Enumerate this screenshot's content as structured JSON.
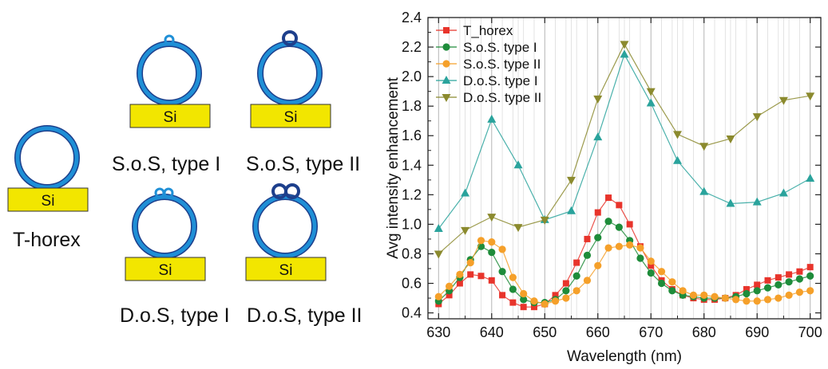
{
  "schematic": {
    "substrate_label": "Si",
    "captions": {
      "t_horex": "T-horex",
      "sos1": "S.o.S, type I",
      "sos2": "S.o.S, type II",
      "dos1": "D.o.S, type I",
      "dos2": "D.o.S, type II"
    },
    "colors": {
      "ring": "#1f8fd6",
      "ring_edge": "#1d3f8c",
      "substrate": "#f2e600"
    }
  },
  "chart_data": {
    "type": "line",
    "xlabel": "Wavelength (nm)",
    "ylabel": "Avg intensity enhancement",
    "xlim": [
      628,
      702
    ],
    "ylim": [
      0.36,
      2.4
    ],
    "xticks": [
      630,
      640,
      650,
      660,
      670,
      680,
      690,
      700
    ],
    "yticks": [
      0.4,
      0.6,
      0.8,
      1.0,
      1.2,
      1.4,
      1.6,
      1.8,
      2.0,
      2.2,
      2.4
    ],
    "grid": "vertical, at every data x",
    "legend": "top-left",
    "series": [
      {
        "name": "T_horex",
        "color": "#e8342b",
        "marker": "square",
        "x": [
          630,
          632,
          634,
          636,
          638,
          640,
          642,
          644,
          646,
          648,
          650,
          652,
          654,
          656,
          658,
          660,
          662,
          664,
          666,
          668,
          670,
          672,
          674,
          676,
          678,
          680,
          682,
          684,
          686,
          688,
          690,
          692,
          694,
          696,
          698,
          700
        ],
        "y": [
          0.46,
          0.52,
          0.6,
          0.66,
          0.65,
          0.62,
          0.52,
          0.47,
          0.44,
          0.44,
          0.46,
          0.52,
          0.6,
          0.74,
          0.9,
          1.08,
          1.18,
          1.13,
          1.0,
          0.85,
          0.72,
          0.62,
          0.56,
          0.52,
          0.5,
          0.49,
          0.49,
          0.5,
          0.52,
          0.56,
          0.59,
          0.62,
          0.64,
          0.66,
          0.68,
          0.71
        ]
      },
      {
        "name": "S.o.S. type I",
        "color": "#1e8c3a",
        "marker": "circle",
        "x": [
          630,
          632,
          634,
          636,
          638,
          640,
          642,
          644,
          646,
          648,
          650,
          652,
          654,
          656,
          658,
          660,
          662,
          664,
          666,
          668,
          670,
          672,
          674,
          676,
          678,
          680,
          682,
          684,
          686,
          688,
          690,
          692,
          694,
          696,
          698,
          700
        ],
        "y": [
          0.48,
          0.55,
          0.64,
          0.76,
          0.85,
          0.81,
          0.68,
          0.56,
          0.49,
          0.47,
          0.47,
          0.49,
          0.55,
          0.65,
          0.79,
          0.91,
          1.02,
          0.98,
          0.89,
          0.77,
          0.67,
          0.6,
          0.55,
          0.52,
          0.51,
          0.5,
          0.5,
          0.5,
          0.51,
          0.53,
          0.55,
          0.57,
          0.59,
          0.61,
          0.63,
          0.65
        ]
      },
      {
        "name": "S.o.S. type II",
        "color": "#f5a02a",
        "marker": "circle",
        "x": [
          630,
          632,
          634,
          636,
          638,
          640,
          642,
          644,
          646,
          648,
          650,
          652,
          654,
          656,
          658,
          660,
          662,
          664,
          666,
          668,
          670,
          672,
          674,
          676,
          678,
          680,
          682,
          684,
          686,
          688,
          690,
          692,
          694,
          696,
          698,
          700
        ],
        "y": [
          0.51,
          0.58,
          0.66,
          0.74,
          0.89,
          0.88,
          0.83,
          0.64,
          0.53,
          0.48,
          0.46,
          0.48,
          0.5,
          0.55,
          0.62,
          0.72,
          0.84,
          0.85,
          0.86,
          0.84,
          0.75,
          0.68,
          0.61,
          0.55,
          0.52,
          0.52,
          0.51,
          0.5,
          0.49,
          0.48,
          0.48,
          0.49,
          0.5,
          0.52,
          0.54,
          0.55
        ]
      },
      {
        "name": "D.o.S. type I",
        "color": "#2aa39c",
        "marker": "triangle-up",
        "x": [
          630,
          635,
          640,
          645,
          650,
          655,
          660,
          665,
          670,
          675,
          680,
          685,
          690,
          695,
          700
        ],
        "y": [
          0.97,
          1.21,
          1.71,
          1.4,
          1.03,
          1.09,
          1.59,
          2.15,
          1.82,
          1.43,
          1.22,
          1.14,
          1.15,
          1.21,
          1.31
        ]
      },
      {
        "name": "D.o.S. type II",
        "color": "#8b8a2e",
        "marker": "triangle-down",
        "x": [
          630,
          635,
          640,
          645,
          650,
          655,
          660,
          665,
          670,
          675,
          680,
          685,
          690,
          695,
          700
        ],
        "y": [
          0.8,
          0.96,
          1.05,
          0.98,
          1.03,
          1.3,
          1.85,
          2.22,
          1.9,
          1.61,
          1.53,
          1.58,
          1.73,
          1.84,
          1.87
        ]
      }
    ]
  }
}
